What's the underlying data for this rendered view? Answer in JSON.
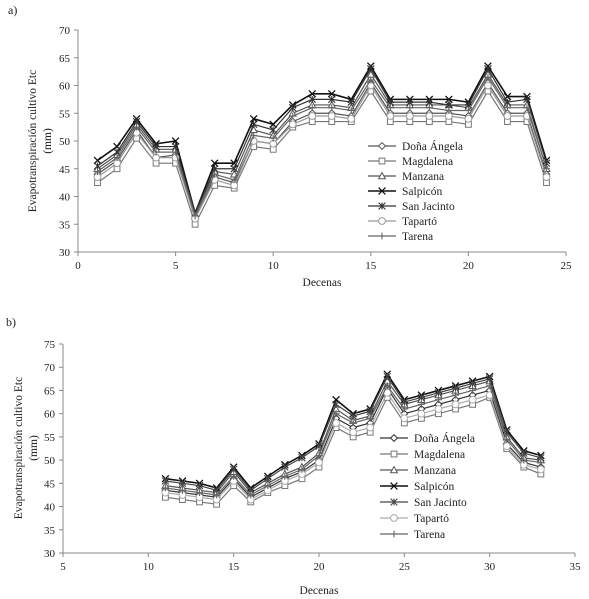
{
  "chart_data": [
    {
      "panel_label": "a)",
      "type": "line",
      "xlabel": "Decenas",
      "ylabel_line1": "Evapotranspiración cultivo Etc",
      "ylabel_line2": "(mm)",
      "xlim": [
        0,
        25
      ],
      "ylim": [
        30,
        70
      ],
      "xticks": [
        0,
        5,
        10,
        15,
        20,
        25
      ],
      "yticks": [
        30,
        35,
        40,
        45,
        50,
        55,
        60,
        65,
        70
      ],
      "legend_position": "right-center",
      "x": [
        1,
        2,
        3,
        4,
        5,
        6,
        7,
        8,
        9,
        10,
        11,
        12,
        13,
        14,
        15,
        16,
        17,
        18,
        19,
        20,
        21,
        22,
        23,
        24
      ],
      "series": [
        {
          "name": "Doña Ángela",
          "marker": "diamond",
          "color": "#555555",
          "values": [
            44,
            46.5,
            52,
            47,
            47.5,
            36,
            43.5,
            42.5,
            50,
            49.5,
            53.5,
            55,
            55,
            54.5,
            60.5,
            55,
            55,
            55,
            55,
            54.5,
            60.5,
            55,
            55,
            44
          ]
        },
        {
          "name": "Magdalena",
          "marker": "square",
          "color": "#777777",
          "values": [
            42.5,
            45,
            50.5,
            46,
            46,
            35,
            42,
            41.5,
            49,
            48.5,
            52.5,
            53.5,
            53.5,
            53.5,
            59,
            53.5,
            53.5,
            53.5,
            53.5,
            53,
            59,
            53.5,
            53.5,
            42.5
          ]
        },
        {
          "name": "Manzana",
          "marker": "triangle",
          "color": "#555555",
          "values": [
            45,
            47.5,
            53,
            48.5,
            48.5,
            36.5,
            44.5,
            44,
            52,
            51,
            55,
            56.5,
            56.5,
            56,
            62,
            56.5,
            56.5,
            56.5,
            56.5,
            56,
            62,
            56.5,
            56.5,
            45
          ]
        },
        {
          "name": "Salpicón",
          "marker": "x",
          "color": "#111111",
          "values": [
            46.5,
            49,
            54,
            49.5,
            50,
            37,
            46,
            46,
            54,
            53,
            56.5,
            58.5,
            58.5,
            57.5,
            63.5,
            57.5,
            57.5,
            57.5,
            57.5,
            57,
            63.5,
            58,
            58,
            46.5
          ]
        },
        {
          "name": "San Jacinto",
          "marker": "star",
          "color": "#333333",
          "values": [
            45.5,
            48,
            53.5,
            49,
            49,
            37,
            45,
            45,
            53,
            52,
            56,
            57.5,
            57.5,
            57,
            63,
            57,
            57,
            57,
            56.5,
            56.5,
            63,
            57,
            57.5,
            46
          ]
        },
        {
          "name": "Tapartó",
          "marker": "circle",
          "color": "#999999",
          "values": [
            43.5,
            46,
            51.5,
            47,
            47,
            36,
            43,
            42,
            50,
            49.5,
            53,
            54.5,
            54.5,
            54,
            60,
            54.5,
            54.5,
            54.5,
            54.5,
            54,
            60,
            54.5,
            54.5,
            43.5
          ]
        },
        {
          "name": "Tarena",
          "marker": "plus",
          "color": "#666666",
          "values": [
            44.5,
            47,
            52.5,
            48,
            48,
            36.5,
            44,
            43,
            51,
            50.5,
            54.5,
            56,
            56,
            55.5,
            61,
            56,
            56,
            56,
            55.5,
            55.5,
            61.5,
            56,
            56,
            45
          ]
        }
      ]
    },
    {
      "panel_label": "b)",
      "type": "line",
      "xlabel": "Decenas",
      "ylabel_line1": "Evapotranspiración cultivo Etc",
      "ylabel_line2": "(mm)",
      "xlim": [
        5,
        35
      ],
      "ylim": [
        30,
        75
      ],
      "xticks": [
        5,
        10,
        15,
        20,
        25,
        30,
        35
      ],
      "yticks": [
        30,
        35,
        40,
        45,
        50,
        55,
        60,
        65,
        70,
        75
      ],
      "legend_position": "right-center",
      "x": [
        11,
        12,
        13,
        14,
        15,
        16,
        17,
        18,
        19,
        20,
        21,
        22,
        23,
        24,
        25,
        26,
        27,
        28,
        29,
        30,
        31,
        32,
        33
      ],
      "series": [
        {
          "name": "Doña Ángela",
          "marker": "diamond",
          "color": "#333333",
          "values": [
            43.5,
            43,
            42.5,
            42,
            46,
            42,
            44,
            46,
            47.5,
            50,
            59,
            57,
            58,
            65.5,
            60,
            61,
            62,
            63,
            64,
            65,
            53.5,
            49.5,
            48.5
          ]
        },
        {
          "name": "Magdalena",
          "marker": "square",
          "color": "#777777",
          "values": [
            42,
            41.5,
            41,
            40.5,
            44.5,
            41,
            43,
            44.5,
            46,
            48.5,
            57,
            55,
            56,
            63.5,
            58,
            59,
            60,
            61,
            62,
            63.5,
            52.5,
            48.5,
            47
          ]
        },
        {
          "name": "Manzana",
          "marker": "triangle",
          "color": "#555555",
          "values": [
            44.5,
            44,
            43.5,
            43,
            47.5,
            43,
            45,
            47,
            48.5,
            51.5,
            61,
            58.5,
            59.5,
            67,
            62,
            63,
            64,
            65,
            66,
            67,
            55,
            50.5,
            50
          ]
        },
        {
          "name": "Salpicón",
          "marker": "x",
          "color": "#111111",
          "values": [
            46,
            45.5,
            45,
            44,
            48.5,
            44,
            46.5,
            49,
            51,
            53.5,
            63,
            60,
            61,
            68.5,
            63,
            64,
            65,
            66,
            67,
            68,
            56.5,
            52,
            51
          ]
        },
        {
          "name": "San Jacinto",
          "marker": "star",
          "color": "#444444",
          "values": [
            45.5,
            45,
            44.5,
            43.5,
            48,
            43.5,
            46,
            48.5,
            50.5,
            53,
            62,
            59.5,
            60.5,
            68,
            62.5,
            63.5,
            64.5,
            65.5,
            66.5,
            67.5,
            56,
            51.5,
            50.5
          ]
        },
        {
          "name": "Tapartó",
          "marker": "circle",
          "color": "#aaaaaa",
          "values": [
            43,
            42.5,
            42,
            41.5,
            45.5,
            41.5,
            43.5,
            45.5,
            47,
            49.5,
            58,
            56,
            57,
            64.5,
            59,
            60,
            61,
            62,
            63,
            64,
            53,
            49,
            48
          ]
        },
        {
          "name": "Tarena",
          "marker": "plus",
          "color": "#666666",
          "values": [
            44,
            43.5,
            43,
            42.5,
            46.5,
            42.5,
            44.5,
            46.5,
            48,
            51,
            60,
            58,
            59,
            66,
            61,
            62,
            63,
            64,
            65,
            66,
            54.5,
            50,
            49.5
          ]
        }
      ]
    }
  ]
}
